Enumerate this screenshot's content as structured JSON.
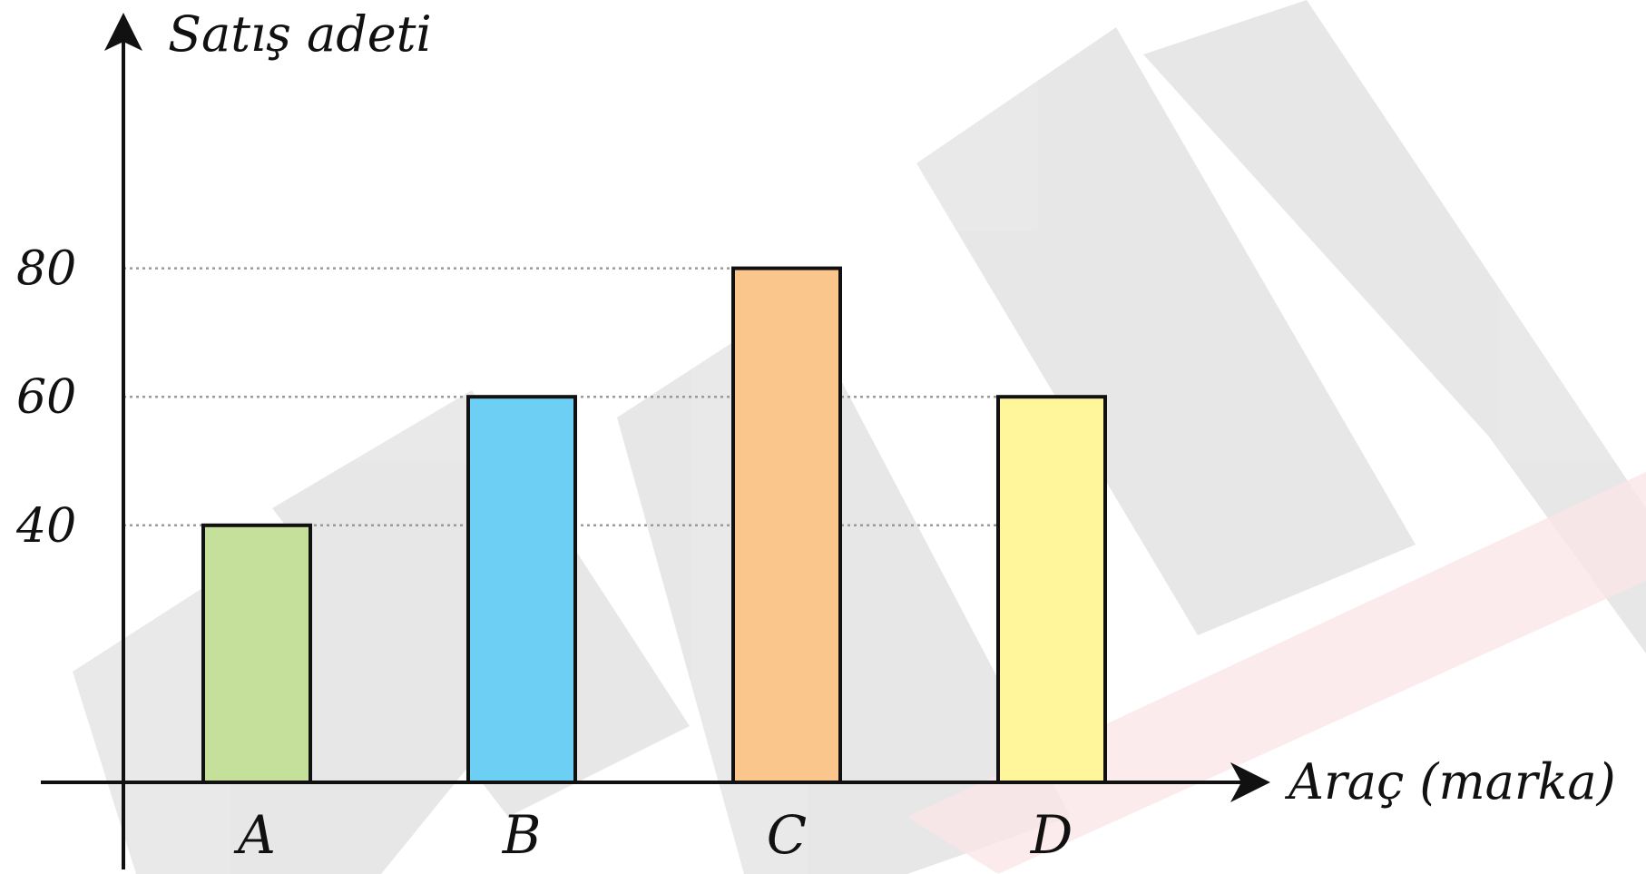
{
  "chart_data": {
    "type": "bar",
    "title": "",
    "ylabel": "Satış adeti",
    "xlabel": "Araç (marka)",
    "categories": [
      "A",
      "B",
      "C",
      "D"
    ],
    "values": [
      40,
      60,
      80,
      60
    ],
    "yticks": [
      40,
      60,
      80
    ],
    "ylim": [
      0,
      100
    ],
    "grid": "dotted lines at 40, 60, 80",
    "colors": [
      "#c5e09a",
      "#6dcff3",
      "#fbc68c",
      "#fff59a"
    ],
    "edge_color": "#111111"
  }
}
